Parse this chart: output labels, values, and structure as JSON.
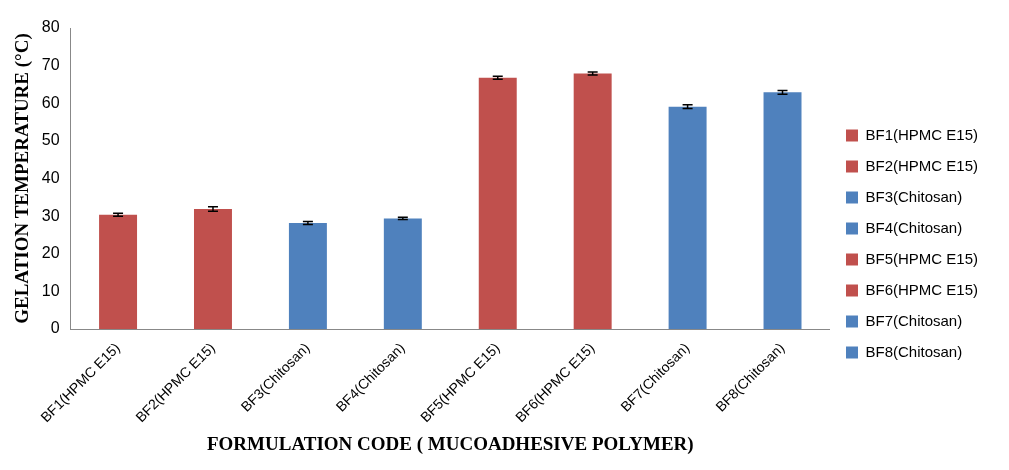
{
  "chart_data": {
    "type": "bar",
    "xlabel": "FORMULATION CODE ( MUCOADHESIVE POLYMER)",
    "ylabel": "GELATION TEMPERATURE (°C)",
    "categories": [
      "BF1(HPMC E15)",
      "BF2(HPMC E15)",
      "BF3(Chitosan)",
      "BF4(Chitosan)",
      "BF5(HPMC E15)",
      "BF6(HPMC E15)",
      "BF7(Chitosan)",
      "BF8(Chitosan)"
    ],
    "series": [
      {
        "name": "BF1(HPMC E15)",
        "color": "#c0504d",
        "values": [
          30.4,
          null,
          null,
          null,
          null,
          null,
          null,
          null
        ],
        "errors": [
          0.4,
          null,
          null,
          null,
          null,
          null,
          null,
          null
        ]
      },
      {
        "name": "BF2(HPMC E15)",
        "color": "#c0504d",
        "values": [
          null,
          31.9,
          null,
          null,
          null,
          null,
          null,
          null
        ],
        "errors": [
          null,
          0.6,
          null,
          null,
          null,
          null,
          null,
          null
        ]
      },
      {
        "name": "BF3(Chitosan)",
        "color": "#4f81bd",
        "values": [
          null,
          null,
          28.2,
          null,
          null,
          null,
          null,
          null
        ],
        "errors": [
          null,
          null,
          0.4,
          null,
          null,
          null,
          null,
          null
        ]
      },
      {
        "name": "BF4(Chitosan)",
        "color": "#4f81bd",
        "values": [
          null,
          null,
          null,
          29.4,
          null,
          null,
          null,
          null
        ],
        "errors": [
          null,
          null,
          null,
          0.3,
          null,
          null,
          null,
          null
        ]
      },
      {
        "name": "BF5(HPMC E15)",
        "color": "#c0504d",
        "values": [
          null,
          null,
          null,
          null,
          66.8,
          null,
          null,
          null
        ],
        "errors": [
          null,
          null,
          null,
          null,
          0.4,
          null,
          null,
          null
        ]
      },
      {
        "name": "BF6(HPMC E15)",
        "color": "#c0504d",
        "values": [
          null,
          null,
          null,
          null,
          null,
          67.9,
          null,
          null
        ],
        "errors": [
          null,
          null,
          null,
          null,
          null,
          0.4,
          null,
          null
        ]
      },
      {
        "name": "BF7(Chitosan)",
        "color": "#4f81bd",
        "values": [
          null,
          null,
          null,
          null,
          null,
          null,
          59.1,
          null
        ],
        "errors": [
          null,
          null,
          null,
          null,
          null,
          null,
          0.5,
          null
        ]
      },
      {
        "name": "BF8(Chitosan)",
        "color": "#4f81bd",
        "values": [
          null,
          null,
          null,
          null,
          null,
          null,
          null,
          62.9
        ],
        "errors": [
          null,
          null,
          null,
          null,
          null,
          null,
          null,
          0.5
        ]
      }
    ],
    "ylim": [
      0,
      80
    ],
    "yticks": [
      0,
      10,
      20,
      30,
      40,
      50,
      60,
      70,
      80
    ],
    "grid": false,
    "legend": "right"
  }
}
